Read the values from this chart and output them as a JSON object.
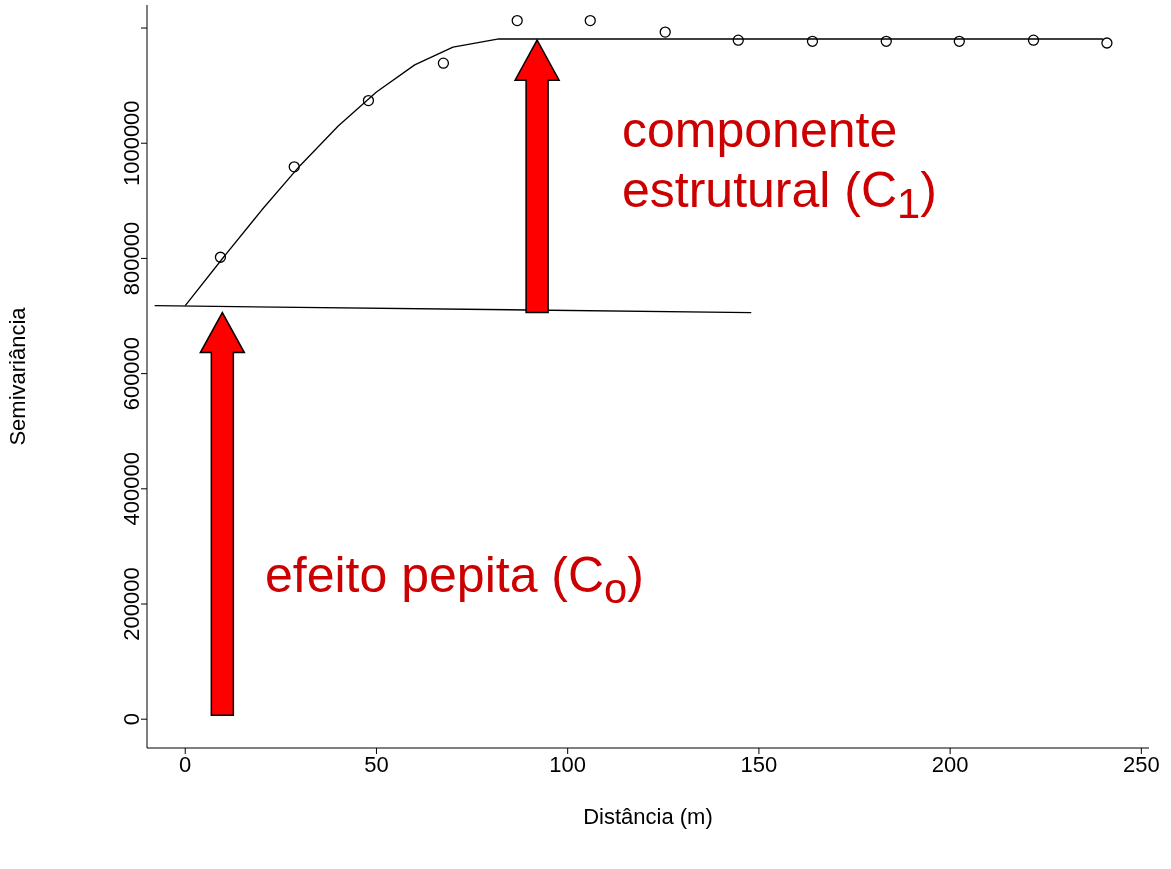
{
  "chart_data": {
    "type": "scatter",
    "xlabel": "Distância (m)",
    "ylabel": "Semivariância",
    "xlim": [
      -10,
      252
    ],
    "xticks": [
      0,
      50,
      100,
      150,
      200,
      250
    ],
    "ylim": [
      -50000,
      1240000
    ],
    "yticks": [
      0,
      200000,
      400000,
      600000,
      800000,
      1000000,
      {
        "value": 1200000,
        "label": null
      }
    ],
    "series": [
      {
        "color": "#000000",
        "marker": "circle",
        "x": [
          9.2,
          28.5,
          47.9,
          67.5,
          86.8,
          105.9,
          125.5,
          144.6,
          164,
          183.3,
          202.4,
          221.8,
          241
        ],
        "values": [
          802000,
          959000,
          1074000,
          1139000,
          1213000,
          1213000,
          1193000,
          1179000,
          1177000,
          1177000,
          1177000,
          1179000,
          1174000
        ]
      },
      {
        "type": "line",
        "color": "#000000",
        "marker": "none",
        "x": [
          0,
          10,
          20,
          30,
          40,
          50,
          60,
          70,
          82,
          240
        ],
        "values": [
          718000,
          802000,
          884000,
          961000,
          1030000,
          1089000,
          1136000,
          1167000,
          1181000,
          1181000
        ]
      },
      {
        "type": "line",
        "color": "#000000",
        "marker": "none",
        "x": [
          -8,
          148
        ],
        "values": [
          718000,
          706000
        ]
      }
    ],
    "annotations": [
      "efeito pepita (C$_{o}$)",
      "componente estrutural (C$_{1}$)"
    ]
  }
}
